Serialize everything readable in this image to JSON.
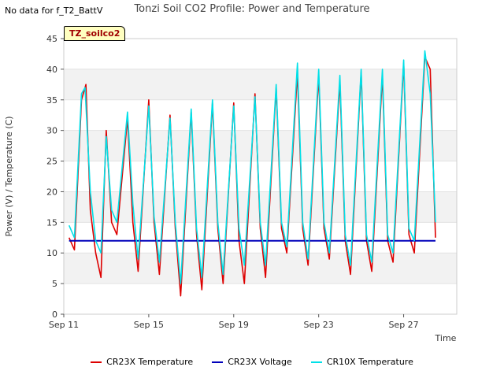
{
  "no_data_text": "No data for f_T2_BattV",
  "site_badge": "TZ_soilco2",
  "chart_data": {
    "type": "line",
    "title": "Tonzi Soil CO2 Profile: Power and Temperature",
    "xlabel": "Time",
    "ylabel": "Power (V) / Temperature (C)",
    "xlim": [
      "2023-09-11",
      "2023-09-29T12:00"
    ],
    "ylim": [
      0,
      45
    ],
    "yticks": [
      0,
      5,
      10,
      15,
      20,
      25,
      30,
      35,
      40,
      45
    ],
    "xticks": [
      {
        "date": "2023-09-11",
        "label": "Sep 11"
      },
      {
        "date": "2023-09-15",
        "label": "Sep 15"
      },
      {
        "date": "2023-09-19",
        "label": "Sep 19"
      },
      {
        "date": "2023-09-23",
        "label": "Sep 23"
      },
      {
        "date": "2023-09-27",
        "label": "Sep 27"
      }
    ],
    "grid": "horizontal bands",
    "legend_position": "bottom",
    "series": [
      {
        "name": "CR23X Temperature",
        "color": "#dd0000",
        "points": [
          [
            "2023-09-11T06:00",
            12.5
          ],
          [
            "2023-09-11T12:00",
            10.5
          ],
          [
            "2023-09-11T20:00",
            35.0
          ],
          [
            "2023-09-12T01:00",
            37.5
          ],
          [
            "2023-09-12T06:00",
            17.0
          ],
          [
            "2023-09-12T12:00",
            10.0
          ],
          [
            "2023-09-12T18:00",
            6.0
          ],
          [
            "2023-09-13T00:00",
            30.0
          ],
          [
            "2023-09-13T06:00",
            15.0
          ],
          [
            "2023-09-13T12:00",
            13.0
          ],
          [
            "2023-09-14T00:00",
            32.0
          ],
          [
            "2023-09-14T06:00",
            15.0
          ],
          [
            "2023-09-14T12:00",
            7.0
          ],
          [
            "2023-09-15T00:00",
            35.0
          ],
          [
            "2023-09-15T06:00",
            15.0
          ],
          [
            "2023-09-15T12:00",
            6.5
          ],
          [
            "2023-09-16T00:00",
            32.5
          ],
          [
            "2023-09-16T06:00",
            14.0
          ],
          [
            "2023-09-16T12:00",
            3.0
          ],
          [
            "2023-09-17T00:00",
            33.0
          ],
          [
            "2023-09-17T06:00",
            13.0
          ],
          [
            "2023-09-17T12:00",
            4.0
          ],
          [
            "2023-09-18T00:00",
            34.5
          ],
          [
            "2023-09-18T06:00",
            14.0
          ],
          [
            "2023-09-18T12:00",
            5.0
          ],
          [
            "2023-09-19T00:00",
            34.5
          ],
          [
            "2023-09-19T06:00",
            12.0
          ],
          [
            "2023-09-19T12:00",
            5.0
          ],
          [
            "2023-09-20T00:00",
            36.0
          ],
          [
            "2023-09-20T06:00",
            14.0
          ],
          [
            "2023-09-20T12:00",
            6.0
          ],
          [
            "2023-09-21T00:00",
            37.0
          ],
          [
            "2023-09-21T06:00",
            14.0
          ],
          [
            "2023-09-21T12:00",
            10.0
          ],
          [
            "2023-09-22T00:00",
            39.5
          ],
          [
            "2023-09-22T06:00",
            14.0
          ],
          [
            "2023-09-22T12:00",
            8.0
          ],
          [
            "2023-09-23T00:00",
            39.0
          ],
          [
            "2023-09-23T06:00",
            14.0
          ],
          [
            "2023-09-23T12:00",
            9.0
          ],
          [
            "2023-09-24T00:00",
            38.0
          ],
          [
            "2023-09-24T06:00",
            12.0
          ],
          [
            "2023-09-24T12:00",
            6.5
          ],
          [
            "2023-09-25T00:00",
            39.5
          ],
          [
            "2023-09-25T06:00",
            12.0
          ],
          [
            "2023-09-25T12:00",
            7.0
          ],
          [
            "2023-09-26T00:00",
            39.0
          ],
          [
            "2023-09-26T06:00",
            12.0
          ],
          [
            "2023-09-26T12:00",
            8.5
          ],
          [
            "2023-09-27T00:00",
            41.0
          ],
          [
            "2023-09-27T06:00",
            13.0
          ],
          [
            "2023-09-27T12:00",
            10.0
          ],
          [
            "2023-09-28T00:00",
            42.0
          ],
          [
            "2023-09-28T06:00",
            40.0
          ],
          [
            "2023-09-28T12:00",
            12.5
          ]
        ]
      },
      {
        "name": "CR23X Voltage",
        "color": "#0000bb",
        "points": [
          [
            "2023-09-11T06:00",
            12.0
          ],
          [
            "2023-09-13T00:00",
            12.0
          ],
          [
            "2023-09-15T00:00",
            12.0
          ],
          [
            "2023-09-17T00:00",
            12.0
          ],
          [
            "2023-09-19T00:00",
            12.0
          ],
          [
            "2023-09-21T00:00",
            12.0
          ],
          [
            "2023-09-23T00:00",
            12.0
          ],
          [
            "2023-09-25T00:00",
            12.0
          ],
          [
            "2023-09-27T00:00",
            12.0
          ],
          [
            "2023-09-28T12:00",
            12.0
          ]
        ]
      },
      {
        "name": "CR10X Temperature",
        "color": "#00e0e8",
        "points": [
          [
            "2023-09-11T06:00",
            14.5
          ],
          [
            "2023-09-11T12:00",
            12.5
          ],
          [
            "2023-09-11T20:00",
            36.0
          ],
          [
            "2023-09-12T00:00",
            37.0
          ],
          [
            "2023-09-12T06:00",
            20.0
          ],
          [
            "2023-09-12T12:00",
            12.0
          ],
          [
            "2023-09-12T18:00",
            10.0
          ],
          [
            "2023-09-13T00:00",
            29.0
          ],
          [
            "2023-09-13T06:00",
            17.0
          ],
          [
            "2023-09-13T12:00",
            15.0
          ],
          [
            "2023-09-14T00:00",
            33.0
          ],
          [
            "2023-09-14T06:00",
            18.0
          ],
          [
            "2023-09-14T12:00",
            9.0
          ],
          [
            "2023-09-15T00:00",
            34.0
          ],
          [
            "2023-09-15T06:00",
            16.0
          ],
          [
            "2023-09-15T12:00",
            8.5
          ],
          [
            "2023-09-16T00:00",
            32.0
          ],
          [
            "2023-09-16T06:00",
            15.0
          ],
          [
            "2023-09-16T12:00",
            5.0
          ],
          [
            "2023-09-17T00:00",
            33.5
          ],
          [
            "2023-09-17T06:00",
            14.0
          ],
          [
            "2023-09-17T12:00",
            6.0
          ],
          [
            "2023-09-18T00:00",
            35.0
          ],
          [
            "2023-09-18T06:00",
            15.0
          ],
          [
            "2023-09-18T12:00",
            6.5
          ],
          [
            "2023-09-19T00:00",
            34.0
          ],
          [
            "2023-09-19T06:00",
            14.0
          ],
          [
            "2023-09-19T12:00",
            8.0
          ],
          [
            "2023-09-20T00:00",
            35.5
          ],
          [
            "2023-09-20T06:00",
            15.0
          ],
          [
            "2023-09-20T12:00",
            8.0
          ],
          [
            "2023-09-21T00:00",
            37.5
          ],
          [
            "2023-09-21T06:00",
            15.0
          ],
          [
            "2023-09-21T12:00",
            11.0
          ],
          [
            "2023-09-22T00:00",
            41.0
          ],
          [
            "2023-09-22T06:00",
            15.0
          ],
          [
            "2023-09-22T12:00",
            9.0
          ],
          [
            "2023-09-23T00:00",
            40.0
          ],
          [
            "2023-09-23T06:00",
            15.0
          ],
          [
            "2023-09-23T12:00",
            10.0
          ],
          [
            "2023-09-24T00:00",
            39.0
          ],
          [
            "2023-09-24T06:00",
            13.0
          ],
          [
            "2023-09-24T12:00",
            8.0
          ],
          [
            "2023-09-25T00:00",
            40.0
          ],
          [
            "2023-09-25T06:00",
            13.0
          ],
          [
            "2023-09-25T12:00",
            8.5
          ],
          [
            "2023-09-26T00:00",
            40.0
          ],
          [
            "2023-09-26T06:00",
            13.0
          ],
          [
            "2023-09-26T12:00",
            10.0
          ],
          [
            "2023-09-27T00:00",
            41.5
          ],
          [
            "2023-09-27T06:00",
            14.0
          ],
          [
            "2023-09-27T12:00",
            12.0
          ],
          [
            "2023-09-28T00:00",
            43.0
          ],
          [
            "2023-09-28T06:00",
            36.0
          ],
          [
            "2023-09-28T12:00",
            15.0
          ]
        ]
      }
    ]
  }
}
